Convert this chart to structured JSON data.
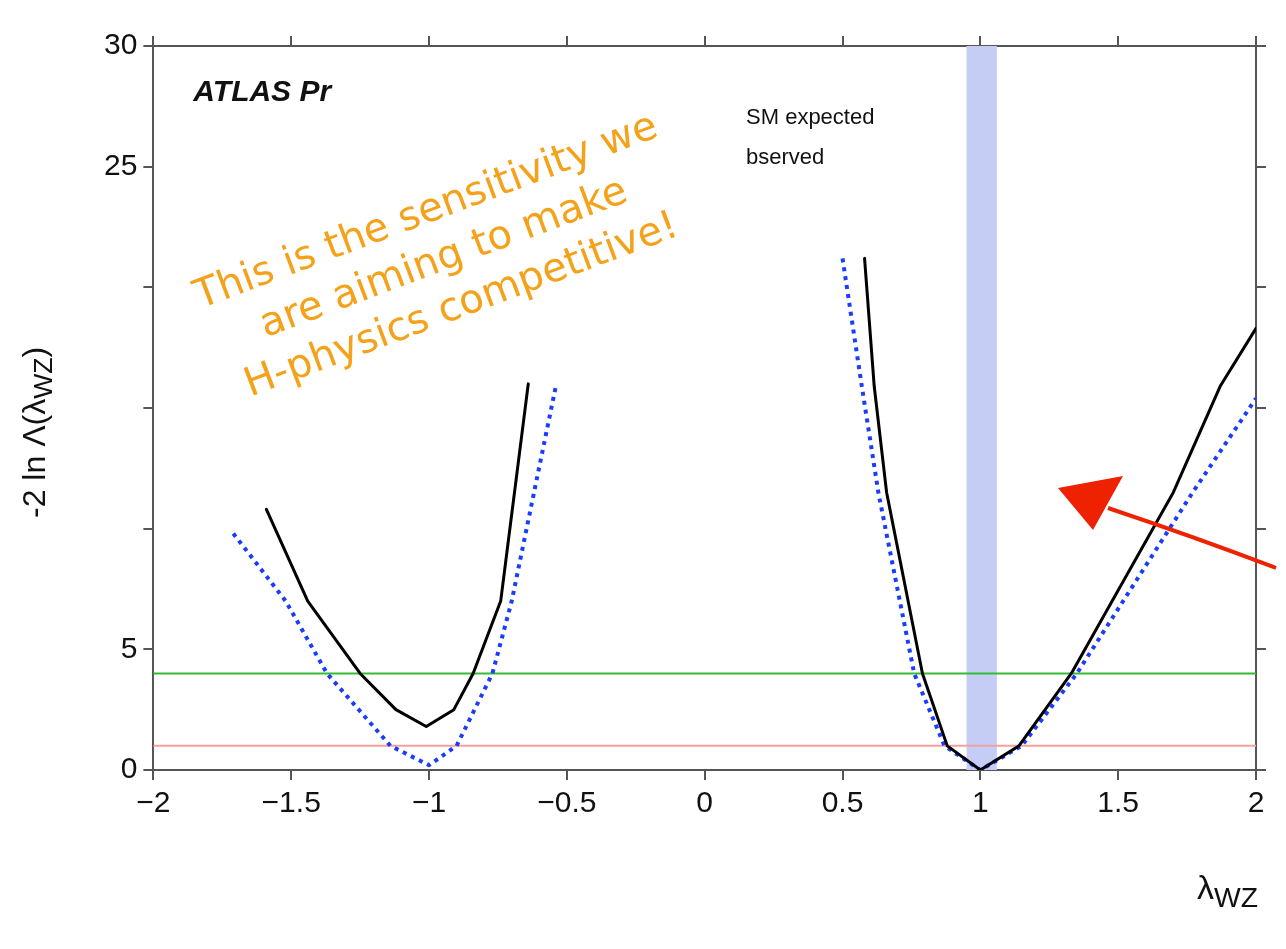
{
  "chart_data": {
    "type": "line",
    "xlabel": "λ$_{WZ}$",
    "ylabel": "-2 ln Λ(λ$_{WZ}$)",
    "annotations": [
      "This is the sensitivity we are aiming to make H-physics competitive!",
      "ATLAS Pr",
      "SM expected",
      "bserved"
    ],
    "series": [
      {
        "color": "#000000",
        "line_style": "solid",
        "x": [
          -1.59,
          -1.44,
          -1.25,
          -1.12,
          -1.01,
          -0.91,
          -0.84,
          -0.74,
          -0.64,
          0,
          0.58,
          0.615,
          0.66,
          0.79,
          0.88,
          1.0,
          1.14,
          1.33,
          1.7,
          1.87,
          2.0
        ],
        "values": [
          10.8,
          7.0,
          4.0,
          2.5,
          1.8,
          2.5,
          4.0,
          7.0,
          16.0,
          null,
          21.2,
          15.9,
          11.5,
          4.0,
          1.0,
          0,
          1.0,
          4.0,
          11.5,
          15.9,
          18.3
        ]
      },
      {
        "color": "#1a3cff",
        "line_style": "dotted",
        "x": [
          -1.71,
          -1.52,
          -1.37,
          -1.14,
          -1.0,
          -0.9,
          -0.77,
          -0.7,
          -0.54,
          0,
          0.5,
          0.57,
          0.63,
          0.76,
          0.87,
          1.0,
          1.15,
          1.35,
          1.77,
          2.0
        ],
        "values": [
          9.8,
          7.0,
          4.0,
          1.0,
          0.2,
          1.0,
          4.0,
          7.0,
          15.9,
          null,
          21.2,
          15.9,
          11.5,
          4.0,
          1.0,
          0,
          1.0,
          4.0,
          11.5,
          15.4
        ]
      }
    ],
    "ref_lines": [
      {
        "axis": "y",
        "value": 4,
        "color": "#33bb33"
      },
      {
        "axis": "y",
        "value": 1,
        "color": "#f4a0a0"
      }
    ],
    "bands": [
      {
        "axis": "x",
        "from": 0.95,
        "to": 1.06,
        "color": "#c5cdf7"
      }
    ],
    "xlim": [
      -2,
      2
    ],
    "xticks": [
      {
        "value": -2,
        "label": "−2"
      },
      {
        "value": -1.5,
        "label": "−1.5"
      },
      {
        "value": -1,
        "label": "−1"
      },
      {
        "value": -0.5,
        "label": "−0.5"
      },
      0,
      0.5,
      1,
      1.5,
      2
    ],
    "ylim": [
      0,
      30
    ],
    "yticks": [
      0,
      5,
      {
        "value": 10,
        "label": null
      },
      {
        "value": 15,
        "label": null
      },
      {
        "value": 20,
        "label": null
      },
      25,
      30
    ],
    "grid": false,
    "legend": false,
    "marker": "none"
  }
}
